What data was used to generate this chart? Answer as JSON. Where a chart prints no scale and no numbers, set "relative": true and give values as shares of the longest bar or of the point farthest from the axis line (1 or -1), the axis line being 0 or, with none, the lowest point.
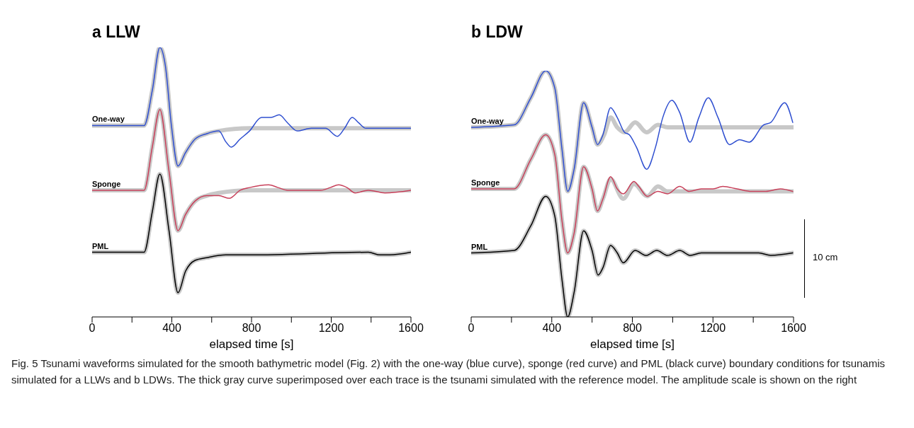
{
  "chart_data": [
    {
      "type": "line",
      "title": "a LLW",
      "xlabel": "elapsed time [s]",
      "relative": true,
      "xlim": [
        0,
        1600
      ],
      "xticks": [
        0,
        {
          "value": 200,
          "label": null
        },
        400,
        {
          "value": 600,
          "label": null
        },
        800,
        {
          "value": 1000,
          "label": null
        },
        1200,
        {
          "value": 1400,
          "label": null
        },
        1600
      ],
      "annotations": [
        "Fig. 5 Tsunami waveforms simulated for the smooth bathymetric model (Fig. 2) with the one-way (blue curve), sponge (red curve) and PML (black curve) boundary conditions for tsunamis simulated for a LLWs and b LDWs. The thick gray curve superimposed over each trace is the tsunami simulated with the reference model. The amplitude scale is shown on the right"
      ],
      "series": [
        {
          "color": "#c8c8c8",
          "x": [
            0,
            261,
            302,
            340,
            368,
            398,
            431,
            469,
            517,
            576,
            636,
            790,
            1100,
            1600
          ],
          "values": [
            0.71,
            0.71,
            0.84,
            1,
            0.93,
            0.71,
            0.56,
            0.61,
            0.66,
            0.68,
            0.69,
            0.7,
            0.7,
            0.7
          ]
        },
        {
          "name": "One-way",
          "color": "#2f4fd0",
          "x": [
            0,
            261,
            302,
            340,
            368,
            398,
            431,
            469,
            517,
            576,
            636,
            671,
            698,
            743,
            790,
            850,
            898,
            939,
            981,
            1029,
            1100,
            1171,
            1231,
            1267,
            1305,
            1338,
            1374,
            1505,
            1600
          ],
          "values": [
            0.71,
            0.71,
            0.84,
            1,
            0.93,
            0.71,
            0.56,
            0.61,
            0.66,
            0.68,
            0.69,
            0.65,
            0.63,
            0.66,
            0.69,
            0.74,
            0.74,
            0.75,
            0.72,
            0.69,
            0.7,
            0.7,
            0.67,
            0.7,
            0.74,
            0.72,
            0.7,
            0.7,
            0.7
          ]
        },
        {
          "color": "#c8c8c8",
          "x": [
            0,
            261,
            302,
            340,
            386,
            431,
            469,
            517,
            576,
            636,
            790,
            1000,
            1600
          ],
          "values": [
            0.47,
            0.47,
            0.63,
            0.77,
            0.54,
            0.32,
            0.38,
            0.43,
            0.45,
            0.46,
            0.47,
            0.47,
            0.47
          ]
        },
        {
          "name": "Sponge",
          "color": "#c8405a",
          "x": [
            0,
            261,
            302,
            340,
            386,
            431,
            469,
            517,
            576,
            636,
            689,
            743,
            790,
            886,
            933,
            981,
            1148,
            1195,
            1237,
            1279,
            1320,
            1386,
            1469,
            1600
          ],
          "values": [
            0.47,
            0.47,
            0.63,
            0.77,
            0.54,
            0.32,
            0.38,
            0.43,
            0.45,
            0.45,
            0.44,
            0.47,
            0.48,
            0.49,
            0.48,
            0.47,
            0.47,
            0.48,
            0.49,
            0.48,
            0.46,
            0.47,
            0.46,
            0.47
          ]
        },
        {
          "color": "#c8c8c8",
          "x": [
            0,
            261,
            302,
            340,
            386,
            431,
            469,
            517,
            576,
            671,
            790,
            1386,
            1445,
            1493,
            1600
          ],
          "values": [
            0.24,
            0.24,
            0.39,
            0.53,
            0.32,
            0.09,
            0.17,
            0.21,
            0.22,
            0.23,
            0.23,
            0.24,
            0.23,
            0.23,
            0.24
          ]
        },
        {
          "name": "PML",
          "color": "#000000",
          "x": [
            0,
            261,
            302,
            340,
            386,
            431,
            469,
            517,
            576,
            671,
            790,
            1386,
            1445,
            1493,
            1600
          ],
          "values": [
            0.24,
            0.24,
            0.39,
            0.53,
            0.32,
            0.09,
            0.17,
            0.21,
            0.22,
            0.23,
            0.23,
            0.24,
            0.23,
            0.23,
            0.24
          ]
        }
      ]
    },
    {
      "type": "line",
      "title": "b LDW",
      "xlabel": "elapsed time [s]",
      "relative": true,
      "xlim": [
        0,
        1600
      ],
      "xticks": [
        0,
        {
          "value": 200,
          "label": null
        },
        400,
        {
          "value": 600,
          "label": null
        },
        800,
        {
          "value": 1000,
          "label": null
        },
        1200,
        {
          "value": 1400,
          "label": null
        },
        1600
      ],
      "annotations": [
        "10 cm"
      ],
      "series": [
        {
          "color": "#c8c8c8",
          "x": [
            0,
            213,
            296,
            370,
            415,
            451,
            479,
            511,
            558,
            600,
            627,
            660,
            692,
            725,
            761,
            814,
            871,
            927,
            975,
            1130,
            1600
          ],
          "values": [
            0.77,
            0.78,
            0.89,
            1,
            0.93,
            0.68,
            0.51,
            0.6,
            0.87,
            0.77,
            0.7,
            0.74,
            0.81,
            0.77,
            0.75,
            0.79,
            0.75,
            0.78,
            0.77,
            0.77,
            0.77
          ]
        },
        {
          "name": "One-way",
          "color": "#2f4fd0",
          "x": [
            0,
            213,
            296,
            370,
            415,
            451,
            479,
            511,
            558,
            600,
            627,
            654,
            692,
            725,
            761,
            785,
            820,
            871,
            915,
            951,
            996,
            1035,
            1086,
            1130,
            1177,
            1225,
            1282,
            1332,
            1380,
            1451,
            1487,
            1556,
            1596
          ],
          "values": [
            0.77,
            0.78,
            0.89,
            1,
            0.93,
            0.68,
            0.51,
            0.6,
            0.87,
            0.77,
            0.7,
            0.74,
            0.85,
            0.81,
            0.75,
            0.74,
            0.69,
            0.6,
            0.69,
            0.81,
            0.88,
            0.83,
            0.71,
            0.81,
            0.89,
            0.81,
            0.7,
            0.72,
            0.71,
            0.78,
            0.79,
            0.87,
            0.79
          ]
        },
        {
          "color": "#c8c8c8",
          "x": [
            0,
            213,
            296,
            370,
            415,
            451,
            479,
            511,
            558,
            600,
            627,
            654,
            692,
            755,
            808,
            874,
            927,
            975,
            1600
          ],
          "values": [
            0.52,
            0.52,
            0.64,
            0.74,
            0.66,
            0.39,
            0.26,
            0.34,
            0.61,
            0.52,
            0.43,
            0.48,
            0.56,
            0.48,
            0.54,
            0.49,
            0.53,
            0.51,
            0.51
          ]
        },
        {
          "name": "Sponge",
          "color": "#c8405a",
          "x": [
            0,
            213,
            296,
            370,
            415,
            451,
            479,
            511,
            558,
            600,
            627,
            654,
            692,
            725,
            755,
            808,
            832,
            874,
            927,
            975,
            1035,
            1082,
            1142,
            1201,
            1249,
            1320,
            1392,
            1463,
            1535,
            1596
          ],
          "values": [
            0.52,
            0.52,
            0.64,
            0.74,
            0.66,
            0.39,
            0.26,
            0.34,
            0.61,
            0.52,
            0.43,
            0.48,
            0.57,
            0.52,
            0.5,
            0.55,
            0.53,
            0.49,
            0.51,
            0.5,
            0.53,
            0.51,
            0.52,
            0.52,
            0.53,
            0.52,
            0.51,
            0.51,
            0.52,
            0.51
          ]
        },
        {
          "color": "#c8c8c8",
          "x": [
            0,
            213,
            296,
            370,
            415,
            451,
            479,
            511,
            558,
            600,
            630,
            654,
            692,
            725,
            755,
            814,
            868,
            921,
            975,
            1035,
            1088,
            1142,
            1213,
            1273,
            1332,
            1427,
            1487,
            1596
          ],
          "values": [
            0.26,
            0.27,
            0.37,
            0.49,
            0.41,
            0.15,
            0,
            0.1,
            0.35,
            0.27,
            0.17,
            0.2,
            0.29,
            0.26,
            0.22,
            0.27,
            0.25,
            0.27,
            0.25,
            0.27,
            0.25,
            0.26,
            0.26,
            0.26,
            0.26,
            0.26,
            0.25,
            0.26
          ]
        },
        {
          "name": "PML",
          "color": "#000000",
          "x": [
            0,
            213,
            296,
            370,
            415,
            451,
            479,
            511,
            558,
            600,
            630,
            654,
            692,
            725,
            755,
            814,
            868,
            921,
            975,
            1035,
            1088,
            1142,
            1213,
            1273,
            1332,
            1427,
            1487,
            1596
          ],
          "values": [
            0.26,
            0.27,
            0.37,
            0.49,
            0.41,
            0.15,
            0,
            0.1,
            0.35,
            0.27,
            0.17,
            0.2,
            0.29,
            0.26,
            0.22,
            0.27,
            0.25,
            0.27,
            0.25,
            0.27,
            0.25,
            0.26,
            0.26,
            0.26,
            0.26,
            0.26,
            0.25,
            0.26
          ]
        }
      ]
    }
  ]
}
